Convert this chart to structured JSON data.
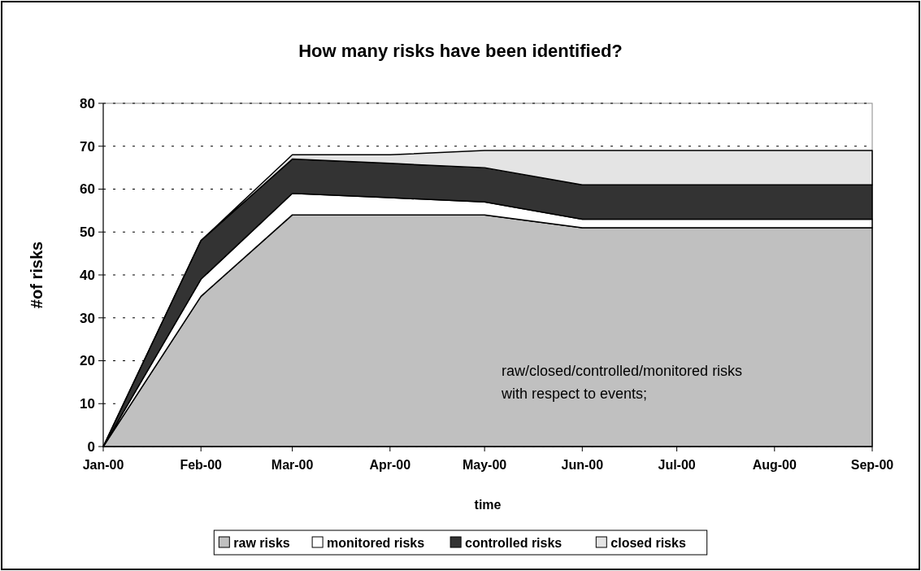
{
  "chart_data": {
    "type": "area",
    "stacked": true,
    "title": "How many risks have been identified?",
    "xlabel": "time",
    "ylabel": "#of risks",
    "x": [
      "2000-01",
      "2000-02",
      "2000-03",
      "2000-04",
      "2000-05",
      "2000-06",
      "2000-07",
      "2000-08",
      "2000-09"
    ],
    "xlim": [
      "2000-01",
      "2000-09"
    ],
    "xticks": [
      {
        "value": "2000-01",
        "label": "Jan-00"
      },
      {
        "value": "2000-02",
        "label": "Feb-00"
      },
      {
        "value": "2000-03",
        "label": "Mar-00"
      },
      {
        "value": "2000-04",
        "label": "Apr-00"
      },
      {
        "value": "2000-05",
        "label": "May-00"
      },
      {
        "value": "2000-06",
        "label": "Jun-00"
      },
      {
        "value": "2000-07",
        "label": "Jul-00"
      },
      {
        "value": "2000-08",
        "label": "Aug-00"
      },
      {
        "value": "2000-09",
        "label": "Sep-00"
      }
    ],
    "ylim": [
      0,
      80
    ],
    "yticks": [
      0,
      10,
      20,
      30,
      40,
      50,
      60,
      70,
      80
    ],
    "grid": "y",
    "legend": "bottom",
    "series": [
      {
        "name": "raw risks",
        "color": "#c0c0c0",
        "values": [
          0,
          35,
          54,
          54,
          54,
          51,
          51,
          51,
          51
        ]
      },
      {
        "name": "monitored risks",
        "color": "#ffffff",
        "values": [
          0,
          4,
          5,
          4,
          3,
          2,
          2,
          2,
          2
        ]
      },
      {
        "name": "controlled risks",
        "color": "#333333",
        "values": [
          0,
          9,
          8,
          8,
          8,
          8,
          8,
          8,
          8
        ]
      },
      {
        "name": "closed risks",
        "color": "#e4e4e4",
        "values": [
          0,
          0,
          1,
          2,
          4,
          8,
          8,
          8,
          8
        ]
      }
    ],
    "annotations": [
      "raw/closed/controlled/monitored risks with respect to events;"
    ]
  }
}
